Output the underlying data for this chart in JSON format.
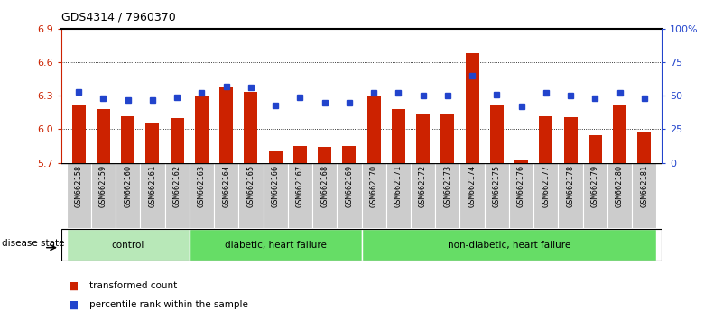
{
  "title": "GDS4314 / 7960370",
  "samples": [
    "GSM662158",
    "GSM662159",
    "GSM662160",
    "GSM662161",
    "GSM662162",
    "GSM662163",
    "GSM662164",
    "GSM662165",
    "GSM662166",
    "GSM662167",
    "GSM662168",
    "GSM662169",
    "GSM662170",
    "GSM662171",
    "GSM662172",
    "GSM662173",
    "GSM662174",
    "GSM662175",
    "GSM662176",
    "GSM662177",
    "GSM662178",
    "GSM662179",
    "GSM662180",
    "GSM662181"
  ],
  "bar_values": [
    6.22,
    6.18,
    6.12,
    6.06,
    6.1,
    6.29,
    6.38,
    6.33,
    5.8,
    5.85,
    5.84,
    5.85,
    6.3,
    6.18,
    6.14,
    6.13,
    6.68,
    6.22,
    5.73,
    6.12,
    6.11,
    5.95,
    6.22,
    5.98
  ],
  "percentile_values": [
    53,
    48,
    47,
    47,
    49,
    52,
    57,
    56,
    43,
    49,
    45,
    45,
    52,
    52,
    50,
    50,
    65,
    51,
    42,
    52,
    50,
    48,
    52,
    48
  ],
  "ylim_left": [
    5.7,
    6.9
  ],
  "ylim_right": [
    0,
    100
  ],
  "yticks_left": [
    5.7,
    6.0,
    6.3,
    6.6,
    6.9
  ],
  "yticks_right": [
    0,
    25,
    50,
    75,
    100
  ],
  "ytick_labels_right": [
    "0",
    "25",
    "50",
    "75",
    "100%"
  ],
  "bar_color": "#cc2200",
  "percentile_color": "#2244cc",
  "groups": [
    {
      "label": "control",
      "start": 0,
      "end": 5
    },
    {
      "label": "diabetic, heart failure",
      "start": 5,
      "end": 12
    },
    {
      "label": "non-diabetic, heart failure",
      "start": 12,
      "end": 24
    }
  ],
  "group_colors": [
    "#b8e8b8",
    "#66dd66",
    "#66dd66"
  ],
  "disease_state_label": "disease state",
  "legend_bar_label": "transformed count",
  "legend_pct_label": "percentile rank within the sample",
  "background_color": "#ffffff",
  "label_bg_color": "#cccccc"
}
